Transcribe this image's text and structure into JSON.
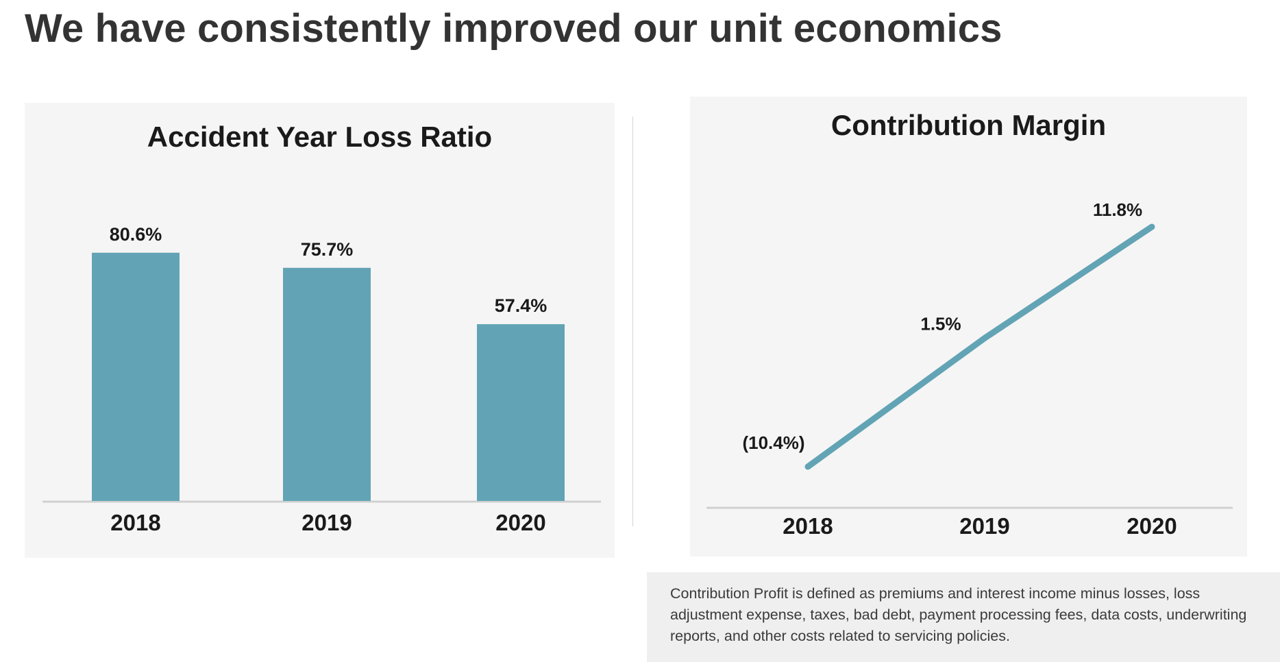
{
  "page": {
    "title": "We have consistently improved our unit economics",
    "note": "Contribution Profit is defined as premiums and interest income minus losses, loss adjustment expense, taxes, bad debt, payment processing fees, data costs, underwriting reports, and other costs related to servicing policies."
  },
  "chart_data": [
    {
      "type": "bar",
      "title": "Accident Year Loss Ratio",
      "categories": [
        "2018",
        "2019",
        "2020"
      ],
      "values": [
        80.6,
        75.7,
        57.4
      ],
      "data_labels": [
        "80.6%",
        "75.7%",
        "57.4%"
      ],
      "ylim": [
        0,
        85
      ],
      "grid": false,
      "legend": "none",
      "color": "#62a4b5"
    },
    {
      "type": "line",
      "title": "Contribution Margin",
      "categories": [
        "2018",
        "2019",
        "2020"
      ],
      "values": [
        -10.4,
        1.5,
        11.8
      ],
      "data_labels": [
        "(10.4%)",
        "1.5%",
        "11.8%"
      ],
      "ylim": [
        -15,
        15
      ],
      "grid": false,
      "legend": "none",
      "color": "#62a4b5"
    }
  ]
}
